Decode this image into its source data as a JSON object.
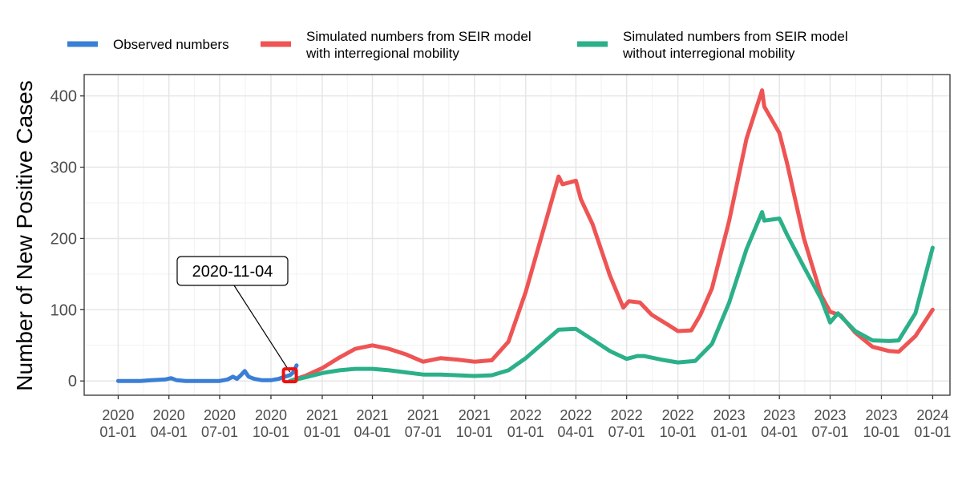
{
  "chart_data": {
    "type": "line",
    "title": "",
    "xlabel": "",
    "ylabel": "Number of New Positive Cases",
    "ylim": [
      -20,
      430
    ],
    "xlim": [
      "2019-11-01",
      "2024-02-01"
    ],
    "y_ticks": [
      0,
      100,
      200,
      300,
      400
    ],
    "x_ticks": [
      {
        "date": "2020-01-01",
        "label": [
          "2020",
          "01-01"
        ]
      },
      {
        "date": "2020-04-01",
        "label": [
          "2020",
          "04-01"
        ]
      },
      {
        "date": "2020-07-01",
        "label": [
          "2020",
          "07-01"
        ]
      },
      {
        "date": "2020-10-01",
        "label": [
          "2020",
          "10-01"
        ]
      },
      {
        "date": "2021-01-01",
        "label": [
          "2021",
          "01-01"
        ]
      },
      {
        "date": "2021-04-01",
        "label": [
          "2021",
          "04-01"
        ]
      },
      {
        "date": "2021-07-01",
        "label": [
          "2021",
          "07-01"
        ]
      },
      {
        "date": "2021-10-01",
        "label": [
          "2021",
          "10-01"
        ]
      },
      {
        "date": "2022-01-01",
        "label": [
          "2022",
          "01-01"
        ]
      },
      {
        "date": "2022-04-01",
        "label": [
          "2022",
          "04-01"
        ]
      },
      {
        "date": "2022-07-01",
        "label": [
          "2022",
          "07-01"
        ]
      },
      {
        "date": "2022-10-01",
        "label": [
          "2022",
          "10-01"
        ]
      },
      {
        "date": "2023-01-01",
        "label": [
          "2023",
          "01-01"
        ]
      },
      {
        "date": "2023-04-01",
        "label": [
          "2023",
          "04-01"
        ]
      },
      {
        "date": "2023-07-01",
        "label": [
          "2023",
          "07-01"
        ]
      },
      {
        "date": "2023-10-01",
        "label": [
          "2023",
          "10-01"
        ]
      },
      {
        "date": "2024-01-01",
        "label": [
          "2024",
          "01-01"
        ]
      }
    ],
    "grid": true,
    "legend_position": "top",
    "series": [
      {
        "name": "Observed numbers",
        "color": "#3a7fd5",
        "points": [
          [
            "2020-01-01",
            0
          ],
          [
            "2020-02-10",
            0
          ],
          [
            "2020-03-01",
            1
          ],
          [
            "2020-03-25",
            2
          ],
          [
            "2020-04-05",
            4
          ],
          [
            "2020-04-15",
            1
          ],
          [
            "2020-05-01",
            0
          ],
          [
            "2020-06-01",
            0
          ],
          [
            "2020-07-01",
            0
          ],
          [
            "2020-07-15",
            2
          ],
          [
            "2020-07-25",
            6
          ],
          [
            "2020-08-01",
            3
          ],
          [
            "2020-08-08",
            8
          ],
          [
            "2020-08-15",
            14
          ],
          [
            "2020-08-22",
            6
          ],
          [
            "2020-09-01",
            3
          ],
          [
            "2020-09-15",
            1
          ],
          [
            "2020-10-01",
            1
          ],
          [
            "2020-10-15",
            3
          ],
          [
            "2020-10-25",
            6
          ],
          [
            "2020-11-04",
            8
          ],
          [
            "2020-11-10",
            12
          ],
          [
            "2020-11-16",
            22
          ]
        ]
      },
      {
        "name": "Simulated numbers from SEIR model\nwith interregional mobility",
        "color": "#ef5454",
        "points": [
          [
            "2020-11-04",
            0
          ],
          [
            "2020-12-01",
            7
          ],
          [
            "2021-01-01",
            18
          ],
          [
            "2021-02-01",
            33
          ],
          [
            "2021-03-01",
            45
          ],
          [
            "2021-04-01",
            50
          ],
          [
            "2021-05-01",
            45
          ],
          [
            "2021-06-01",
            37
          ],
          [
            "2021-07-01",
            27
          ],
          [
            "2021-08-01",
            32
          ],
          [
            "2021-09-01",
            30
          ],
          [
            "2021-10-01",
            27
          ],
          [
            "2021-11-01",
            29
          ],
          [
            "2021-12-01",
            55
          ],
          [
            "2022-01-01",
            125
          ],
          [
            "2022-02-01",
            210
          ],
          [
            "2022-03-01",
            287
          ],
          [
            "2022-03-08",
            276
          ],
          [
            "2022-04-01",
            281
          ],
          [
            "2022-04-10",
            255
          ],
          [
            "2022-05-01",
            220
          ],
          [
            "2022-06-01",
            148
          ],
          [
            "2022-06-25",
            103
          ],
          [
            "2022-07-05",
            112
          ],
          [
            "2022-07-25",
            110
          ],
          [
            "2022-08-15",
            93
          ],
          [
            "2022-09-15",
            78
          ],
          [
            "2022-10-01",
            70
          ],
          [
            "2022-10-25",
            71
          ],
          [
            "2022-11-10",
            92
          ],
          [
            "2022-12-01",
            130
          ],
          [
            "2023-01-01",
            225
          ],
          [
            "2023-02-01",
            340
          ],
          [
            "2023-03-01",
            408
          ],
          [
            "2023-03-05",
            385
          ],
          [
            "2023-04-01",
            348
          ],
          [
            "2023-04-15",
            305
          ],
          [
            "2023-05-15",
            200
          ],
          [
            "2023-06-15",
            120
          ],
          [
            "2023-07-01",
            97
          ],
          [
            "2023-07-20",
            92
          ],
          [
            "2023-08-15",
            68
          ],
          [
            "2023-09-15",
            48
          ],
          [
            "2023-10-15",
            42
          ],
          [
            "2023-11-01",
            41
          ],
          [
            "2023-12-01",
            63
          ],
          [
            "2024-01-01",
            100
          ]
        ]
      },
      {
        "name": "Simulated numbers from SEIR model\nwithout interregional mobility",
        "color": "#2bb089",
        "points": [
          [
            "2020-11-04",
            0
          ],
          [
            "2020-12-01",
            5
          ],
          [
            "2021-01-01",
            11
          ],
          [
            "2021-02-01",
            15
          ],
          [
            "2021-03-01",
            17
          ],
          [
            "2021-04-01",
            17
          ],
          [
            "2021-05-01",
            15
          ],
          [
            "2021-06-01",
            12
          ],
          [
            "2021-07-01",
            9
          ],
          [
            "2021-08-01",
            9
          ],
          [
            "2021-09-01",
            8
          ],
          [
            "2021-10-01",
            7
          ],
          [
            "2021-11-01",
            8
          ],
          [
            "2021-12-01",
            15
          ],
          [
            "2022-01-01",
            32
          ],
          [
            "2022-02-01",
            53
          ],
          [
            "2022-03-01",
            72
          ],
          [
            "2022-04-01",
            73
          ],
          [
            "2022-05-01",
            58
          ],
          [
            "2022-06-01",
            42
          ],
          [
            "2022-07-01",
            31
          ],
          [
            "2022-07-20",
            35
          ],
          [
            "2022-08-01",
            35
          ],
          [
            "2022-09-01",
            30
          ],
          [
            "2022-10-01",
            26
          ],
          [
            "2022-11-01",
            28
          ],
          [
            "2022-12-01",
            52
          ],
          [
            "2023-01-01",
            110
          ],
          [
            "2023-02-01",
            185
          ],
          [
            "2023-03-01",
            237
          ],
          [
            "2023-03-05",
            225
          ],
          [
            "2023-04-01",
            228
          ],
          [
            "2023-04-15",
            205
          ],
          [
            "2023-05-15",
            160
          ],
          [
            "2023-06-15",
            115
          ],
          [
            "2023-07-01",
            82
          ],
          [
            "2023-07-15",
            95
          ],
          [
            "2023-08-15",
            70
          ],
          [
            "2023-09-15",
            57
          ],
          [
            "2023-10-15",
            56
          ],
          [
            "2023-11-01",
            57
          ],
          [
            "2023-12-01",
            95
          ],
          [
            "2024-01-01",
            187
          ]
        ]
      }
    ],
    "annotation": {
      "label": "2020-11-04",
      "date": "2020-11-04",
      "value": 8
    }
  }
}
